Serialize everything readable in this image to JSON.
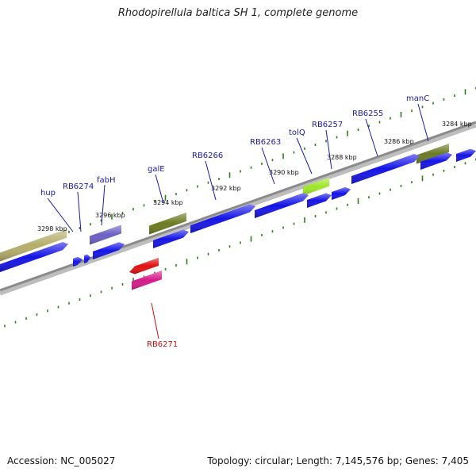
{
  "title": "Rhodopirellula baltica SH 1, complete genome",
  "accession": "Accession: NC_005027",
  "topology": "Topology: circular; Length: 7,145,576 bp; Genes: 7,405",
  "colors": {
    "background": "#ffffff",
    "backbone": "#8a8a8a",
    "tick": "#2e7d1a",
    "gene_forward": "#1414e6",
    "label_forward": "#1a1aa8",
    "label_reverse": "#cc1010",
    "olive": "#6b7a22",
    "khaki": "#b5ad6b",
    "purple": "#6b5fc4",
    "lime": "#9ee62a",
    "red": "#e01010",
    "magenta": "#d41a8a"
  },
  "kbp_labels": [
    {
      "text": "3298 kbp"
    },
    {
      "text": "3296 kbp"
    },
    {
      "text": "3294 kbp"
    },
    {
      "text": "3292 kbp"
    },
    {
      "text": "3290 kbp"
    },
    {
      "text": "3288 kbp"
    },
    {
      "text": "3286 kbp"
    },
    {
      "text": "3284 kbp"
    }
  ],
  "gene_labels": [
    {
      "text": "hup",
      "strand": "forward"
    },
    {
      "text": "RB6274",
      "strand": "forward"
    },
    {
      "text": "fabH",
      "strand": "forward"
    },
    {
      "text": "galE",
      "strand": "forward"
    },
    {
      "text": "RB6266",
      "strand": "forward"
    },
    {
      "text": "RB6263",
      "strand": "forward"
    },
    {
      "text": "tolQ",
      "strand": "forward"
    },
    {
      "text": "RB6257",
      "strand": "forward"
    },
    {
      "text": "RB6255",
      "strand": "forward"
    },
    {
      "text": "manC",
      "strand": "forward"
    },
    {
      "text": "RB6271",
      "strand": "reverse"
    }
  ]
}
